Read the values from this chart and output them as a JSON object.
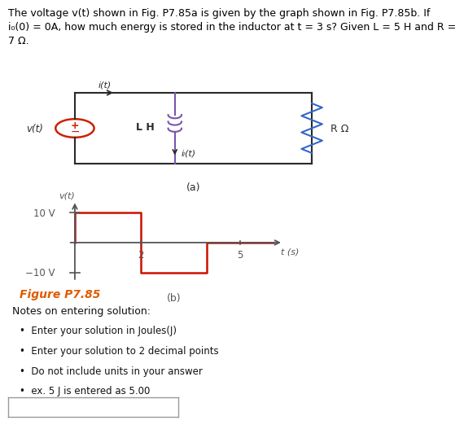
{
  "title_line1": "The voltage v(t) shown in Fig. P7.85a is given by the graph shown in Fig. P7.85b. If",
  "title_line2": "i₀(0) = 0A, how much energy is stored in the inductor at t = 3 s? Given L = 5 H and R =",
  "title_line3": "7 Ω.",
  "figure_label_a": "(a)",
  "figure_label_b": "(b)",
  "figure_title": "Figure P7.85",
  "figure_title_color": "#e05a00",
  "bg_color": "#ffffff",
  "circuit_line_color": "#2a2a2a",
  "source_circle_color": "#cc2200",
  "inductor_color": "#7755aa",
  "resistor_color": "#3366cc",
  "graph_line_color": "#cc1100",
  "graph_axis_color": "#555555",
  "notes_title": "Notes on entering solution:",
  "notes_bullets": [
    "Enter your solution in Joules(J)",
    "Enter your solution to 2 decimal points",
    "Do not include units in your answer",
    "ex. 5 J is entered as 5.00"
  ],
  "font_size_title": 9.0,
  "font_size_labels": 8.5,
  "font_size_notes": 9.0,
  "input_box_color": "#ffffff",
  "input_box_edge_color": "#999999"
}
